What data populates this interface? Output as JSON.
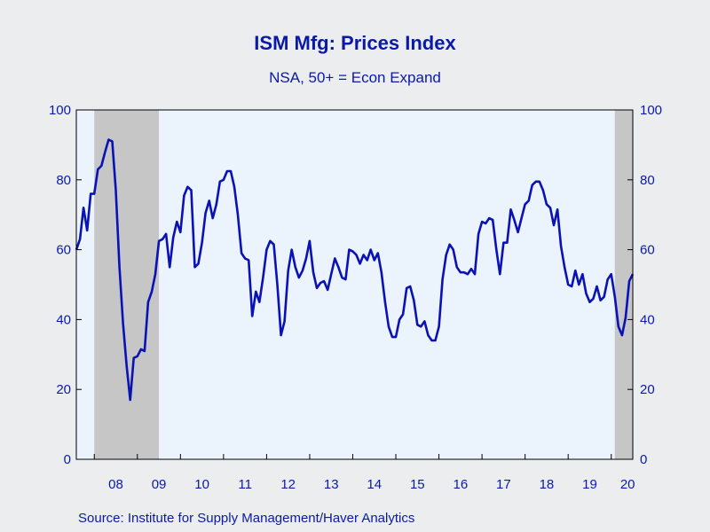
{
  "chart_data": {
    "type": "line",
    "title": "ISM Mfg: Prices Index",
    "subtitle": "NSA, 50+ = Econ Expand",
    "source": "Source:  Institute for Supply Management/Haver Analytics",
    "ylim": [
      0,
      100
    ],
    "yticks": [
      0,
      20,
      40,
      60,
      80,
      100
    ],
    "xlim": [
      2007.583,
      2020.5
    ],
    "xtick_labels": [
      "08",
      "09",
      "10",
      "11",
      "12",
      "13",
      "14",
      "15",
      "16",
      "17",
      "18",
      "19",
      "20"
    ],
    "x_start": "2007-08",
    "x_frequency": "monthly",
    "grid": false,
    "recession_shading": [
      {
        "start": "2008-01",
        "end": "2009-06"
      },
      {
        "start": "2020-02",
        "end": "2020-06"
      }
    ],
    "colors": {
      "line": "#0a12b5",
      "plot_background": "#ebf3fc",
      "shading": "#c6c6c6",
      "page_background": "#ecedee",
      "text": "#0a1aa8"
    },
    "series": [
      {
        "values": [
          60,
          63,
          72,
          65.5,
          76,
          76,
          83,
          84,
          88,
          91.5,
          91,
          77,
          55,
          39,
          27,
          17,
          29,
          29.5,
          31.5,
          31,
          45,
          48,
          53,
          62.5,
          63,
          64.5,
          55,
          63.5,
          68,
          65,
          75.5,
          78,
          77,
          55,
          56,
          62,
          70.5,
          74,
          69,
          73,
          79.5,
          80,
          82.5,
          82.5,
          78,
          70,
          59,
          57.5,
          57,
          41,
          48,
          45,
          52,
          60,
          62.5,
          61.5,
          50,
          35.5,
          39.5,
          54,
          60,
          55,
          52,
          54,
          57.5,
          62.5,
          53.5,
          49,
          50.5,
          51,
          48.5,
          53,
          57.5,
          55,
          52,
          51.5,
          60,
          59.5,
          58.5,
          56,
          58.5,
          57,
          60,
          57,
          59,
          53.5,
          45,
          38,
          35,
          35,
          40,
          41.5,
          49,
          49.5,
          45.5,
          38.5,
          38,
          39.5,
          35.5,
          34,
          34,
          38,
          51.5,
          58.5,
          61.5,
          60,
          55,
          53.5,
          53.5,
          53,
          54.5,
          53,
          64.5,
          68,
          67.5,
          69,
          68.5,
          60,
          53,
          62,
          62,
          71.5,
          68.5,
          65,
          69,
          73,
          74,
          78.5,
          79.5,
          79.5,
          77,
          73,
          72,
          67,
          71.5,
          61,
          55,
          50,
          49.5,
          54,
          50,
          53,
          47.5,
          45,
          46,
          49.5,
          45.5,
          46.5,
          51.5,
          53,
          46.5,
          38,
          35.5,
          40.5,
          51,
          53
        ]
      }
    ]
  }
}
